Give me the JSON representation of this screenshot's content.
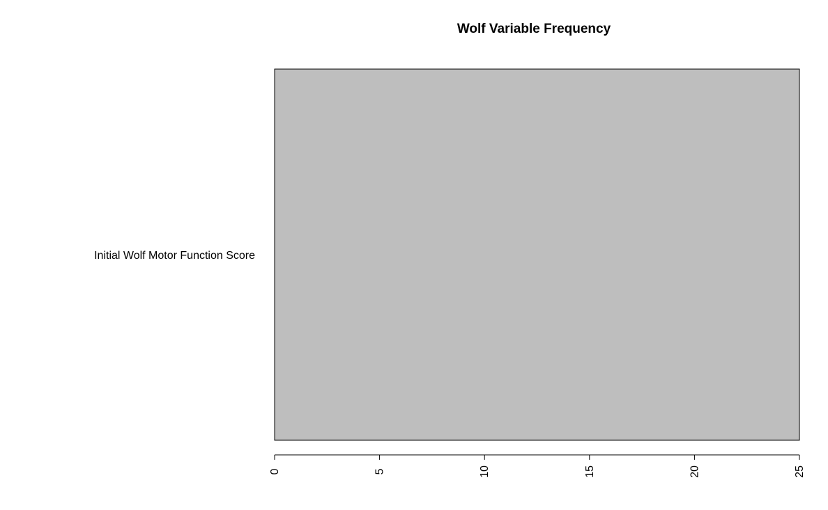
{
  "chart_data": {
    "type": "bar",
    "orientation": "horizontal",
    "title": "Wolf Variable Frequency",
    "xlabel": "",
    "ylabel": "",
    "categories": [
      "Initial Wolf Motor Function Score"
    ],
    "values": [
      25
    ],
    "xlim": [
      0,
      25
    ],
    "x_ticks": [
      "0",
      "5",
      "10",
      "15",
      "20",
      "25"
    ],
    "x_tick_values": [
      0,
      5,
      10,
      15,
      20,
      25
    ],
    "tick_label_rotation": "vertical",
    "grid": false,
    "legend": "none",
    "colors": {
      "bar_fill": "#bebebe",
      "bar_stroke": "#000000",
      "axis": "#000000",
      "text": "#000000",
      "background": "#ffffff"
    }
  }
}
